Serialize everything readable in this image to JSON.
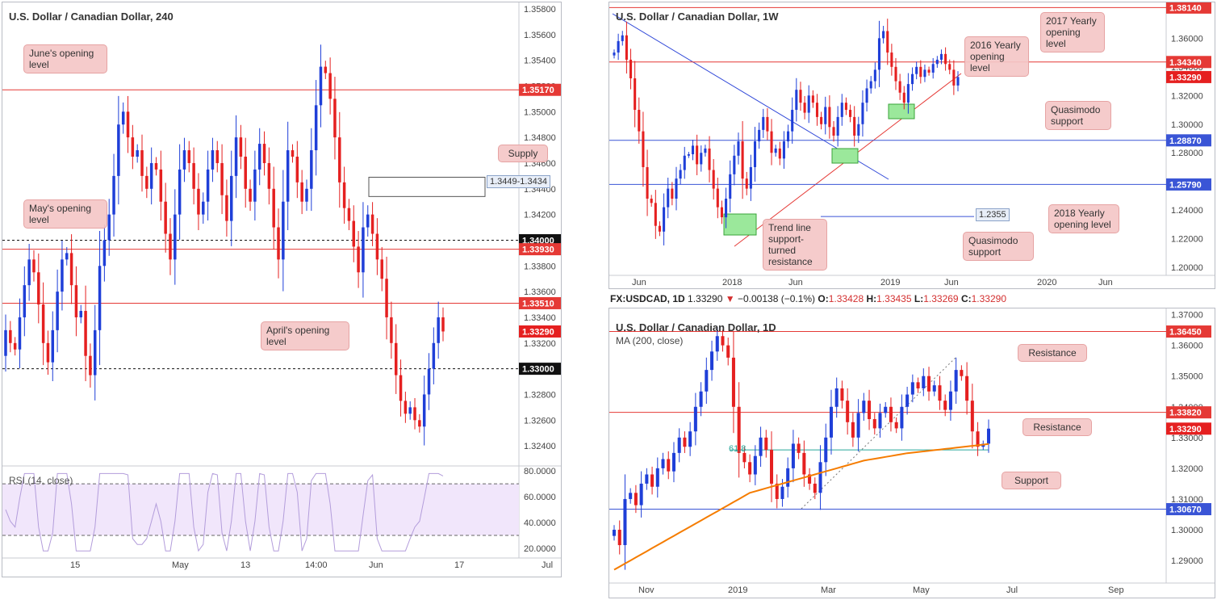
{
  "instrument": "USDCAD",
  "colors": {
    "up": "#1f3fd8",
    "down": "#e52020",
    "level": "#e53935",
    "blue_level": "#3a55d6",
    "ma": "#f57c00",
    "fib": "#26a69a",
    "note_bg": "#f4c7c7",
    "rsi": "#b39ddb"
  },
  "header_1d": {
    "symbol": "FX:USDCAD, 1D",
    "last": "1.33290",
    "arrow": "▼",
    "change": "−0.00138 (−0.1%)",
    "o_label": "O:",
    "o": "1.33428",
    "h_label": "H:",
    "h": "1.33435",
    "l_label": "L:",
    "l": "1.33269",
    "c_label": "C:",
    "c": "1.33290"
  },
  "panels": {
    "h4": {
      "title": "U.S. Dollar / Canadian Dollar, 240",
      "notes": {
        "june": "June's opening level",
        "may": "May's opening level",
        "april": "April's opening level",
        "supply": "Supply"
      },
      "supply_label": "1.3449-1.3434",
      "rsi_label": "RSI (14, close)"
    },
    "w1": {
      "title": "U.S. Dollar / Canadian Dollar, 1W",
      "notes": {
        "y2016": "2016 Yearly opening level",
        "y2017": "2017 Yearly opening level",
        "qm1": "Quasimodo support",
        "y2018": "2018 Yearly opening level",
        "qm2": "Quasimodo support",
        "tl": "Trend line support-turned resistance"
      },
      "qm_label": "1.2355"
    },
    "d1": {
      "title": "U.S. Dollar / Canadian Dollar, 1D",
      "ma_label": "MA (200, close)",
      "fib_label": "61.8",
      "notes": {
        "res1": "Resistance",
        "res2": "Resistance",
        "sup": "Support"
      }
    }
  },
  "chart_data": [
    {
      "id": "h4",
      "type": "candlestick",
      "title": "U.S. Dollar / Canadian Dollar, 240",
      "ylim": [
        1.3225,
        1.3585
      ],
      "y_ticks": [
        "1.35800",
        "1.35600",
        "1.35400",
        "1.35200",
        "1.35000",
        "1.34800",
        "1.34600",
        "1.34400",
        "1.34200",
        "1.34000",
        "1.33800",
        "1.33600",
        "1.33400",
        "1.33200",
        "1.33000",
        "1.32800",
        "1.32600",
        "1.32400"
      ],
      "x_ticks": [
        "15",
        "May",
        "13",
        "14:00",
        "Jun",
        "17",
        "Jul"
      ],
      "levels": [
        {
          "value": 1.3517,
          "label": "1.35170",
          "style": "red"
        },
        {
          "value": 1.34,
          "label": "1.34000",
          "style": "black-dotted"
        },
        {
          "value": 1.3393,
          "label": "1.33930",
          "style": "red"
        },
        {
          "value": 1.3351,
          "label": "1.33510",
          "style": "red"
        },
        {
          "value": 1.3329,
          "label": "1.33290",
          "style": "last"
        },
        {
          "value": 1.33,
          "label": "1.33000",
          "style": "black-dotted"
        }
      ],
      "supply_zone": [
        1.3434,
        1.3449
      ],
      "closes": [
        1.333,
        1.332,
        1.3315,
        1.334,
        1.3365,
        1.3385,
        1.3375,
        1.335,
        1.332,
        1.3305,
        1.333,
        1.336,
        1.3385,
        1.339,
        1.3365,
        1.334,
        1.3345,
        1.331,
        1.3295,
        1.333,
        1.338,
        1.34,
        1.342,
        1.345,
        1.349,
        1.35,
        1.348,
        1.3465,
        1.347,
        1.345,
        1.344,
        1.346,
        1.3455,
        1.343,
        1.3405,
        1.3385,
        1.342,
        1.3455,
        1.347,
        1.346,
        1.344,
        1.342,
        1.343,
        1.3455,
        1.347,
        1.346,
        1.3435,
        1.3415,
        1.345,
        1.348,
        1.3465,
        1.344,
        1.343,
        1.3455,
        1.3475,
        1.346,
        1.344,
        1.341,
        1.3385,
        1.343,
        1.347,
        1.3465,
        1.3445,
        1.343,
        1.344,
        1.347,
        1.3505,
        1.3535,
        1.353,
        1.351,
        1.348,
        1.3445,
        1.3425,
        1.3415,
        1.3395,
        1.3375,
        1.341,
        1.342,
        1.3405,
        1.3385,
        1.337,
        1.334,
        1.332,
        1.3295,
        1.3275,
        1.3265,
        1.327,
        1.326,
        1.3255,
        1.328,
        1.33,
        1.332,
        1.334,
        1.3329
      ],
      "rsi": {
        "ylim": [
          15,
          82
        ],
        "y_ticks": [
          "80.0000",
          "60.0000",
          "40.0000",
          "20.0000"
        ],
        "bands": [
          70,
          30
        ]
      }
    },
    {
      "id": "w1",
      "type": "candlestick",
      "title": "U.S. Dollar / Canadian Dollar, 1W",
      "ylim": [
        1.195,
        1.385
      ],
      "y_ticks": [
        "1.36000",
        "1.34000",
        "1.32000",
        "1.30000",
        "1.28000",
        "1.26000",
        "1.24000",
        "1.22000",
        "1.20000"
      ],
      "x_ticks": [
        "Jun",
        "2018",
        "Jun",
        "2019",
        "Jun",
        "2020",
        "Jun"
      ],
      "levels": [
        {
          "value": 1.3814,
          "label": "1.38140",
          "style": "red"
        },
        {
          "value": 1.3434,
          "label": "1.34340",
          "style": "red"
        },
        {
          "value": 1.3329,
          "label": "1.33290",
          "style": "last"
        },
        {
          "value": 1.2887,
          "label": "1.28870",
          "style": "blue"
        },
        {
          "value": 1.2579,
          "label": "1.25790",
          "style": "blue"
        },
        {
          "value": 1.2355,
          "label": "1.2355",
          "style": "blue-short"
        }
      ],
      "closes": [
        1.35,
        1.358,
        1.362,
        1.345,
        1.332,
        1.31,
        1.295,
        1.27,
        1.248,
        1.245,
        1.229,
        1.225,
        1.242,
        1.255,
        1.248,
        1.262,
        1.268,
        1.278,
        1.279,
        1.285,
        1.272,
        1.28,
        1.283,
        1.268,
        1.255,
        1.242,
        1.235,
        1.248,
        1.265,
        1.278,
        1.288,
        1.262,
        1.255,
        1.27,
        1.288,
        1.296,
        1.305,
        1.295,
        1.28,
        1.283,
        1.276,
        1.288,
        1.295,
        1.31,
        1.324,
        1.315,
        1.308,
        1.32,
        1.315,
        1.305,
        1.3,
        1.312,
        1.298,
        1.292,
        1.305,
        1.315,
        1.31,
        1.305,
        1.292,
        1.3,
        1.315,
        1.325,
        1.33,
        1.338,
        1.36,
        1.365,
        1.35,
        1.34,
        1.33,
        1.322,
        1.315,
        1.328,
        1.335,
        1.34,
        1.333,
        1.338,
        1.336,
        1.342,
        1.345,
        1.349,
        1.342,
        1.338,
        1.327,
        1.3329
      ]
    },
    {
      "id": "d1",
      "type": "candlestick",
      "title": "U.S. Dollar / Canadian Dollar, 1D",
      "ylim": [
        1.2845,
        1.372
      ],
      "y_ticks": [
        "1.37000",
        "1.36000",
        "1.35000",
        "1.34000",
        "1.33000",
        "1.32000",
        "1.31000",
        "1.30000",
        "1.29000"
      ],
      "x_ticks": [
        "Nov",
        "2019",
        "Mar",
        "May",
        "Jul",
        "Sep"
      ],
      "levels": [
        {
          "value": 1.3645,
          "label": "1.36450",
          "style": "red"
        },
        {
          "value": 1.3382,
          "label": "1.33820",
          "style": "red"
        },
        {
          "value": 1.3329,
          "label": "1.33290",
          "style": "last"
        },
        {
          "value": 1.3067,
          "label": "1.30670",
          "style": "blue"
        },
        {
          "value": 1.326,
          "label": "",
          "style": "fib"
        }
      ],
      "closes": [
        1.3,
        1.295,
        1.31,
        1.312,
        1.308,
        1.315,
        1.318,
        1.314,
        1.32,
        1.323,
        1.319,
        1.325,
        1.33,
        1.327,
        1.332,
        1.34,
        1.345,
        1.352,
        1.358,
        1.363,
        1.36,
        1.356,
        1.34,
        1.325,
        1.322,
        1.318,
        1.324,
        1.33,
        1.326,
        1.315,
        1.31,
        1.314,
        1.32,
        1.328,
        1.325,
        1.318,
        1.315,
        1.312,
        1.322,
        1.33,
        1.34,
        1.346,
        1.342,
        1.335,
        1.33,
        1.338,
        1.342,
        1.336,
        1.333,
        1.338,
        1.34,
        1.335,
        1.333,
        1.34,
        1.344,
        1.348,
        1.346,
        1.35,
        1.345,
        1.347,
        1.342,
        1.339,
        1.345,
        1.352,
        1.35,
        1.342,
        1.332,
        1.327,
        1.328,
        1.3329
      ],
      "ma": [
        1.287,
        1.288,
        1.289,
        1.29,
        1.291,
        1.292,
        1.293,
        1.294,
        1.295,
        1.296,
        1.297,
        1.298,
        1.299,
        1.3,
        1.301,
        1.302,
        1.303,
        1.304,
        1.305,
        1.306,
        1.307,
        1.308,
        1.309,
        1.31,
        1.311,
        1.312,
        1.3125,
        1.313,
        1.3135,
        1.314,
        1.3145,
        1.315,
        1.3155,
        1.316,
        1.3165,
        1.317,
        1.3175,
        1.318,
        1.3185,
        1.319,
        1.3195,
        1.32,
        1.3205,
        1.321,
        1.3215,
        1.322,
        1.3225,
        1.3228,
        1.3231,
        1.3234,
        1.3237,
        1.324,
        1.3243,
        1.3246,
        1.3249,
        1.3251,
        1.3253,
        1.3255,
        1.3257,
        1.3259,
        1.3261,
        1.3263,
        1.3265,
        1.3267,
        1.3269,
        1.3271,
        1.3273,
        1.3275,
        1.3277,
        1.3279
      ]
    }
  ]
}
